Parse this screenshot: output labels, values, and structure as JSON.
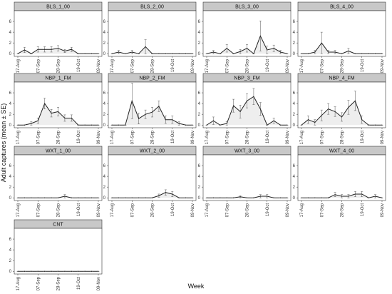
{
  "chart_data": {
    "type": "line",
    "x_label": "Week",
    "y_label": "Adult captures (mean ± SE)",
    "categories": [
      "17-Aug",
      null,
      null,
      "07-Sep",
      null,
      null,
      "28-Sep",
      null,
      null,
      "19-Oct",
      null,
      null,
      "09-Nov"
    ],
    "ylim": [
      -0.5,
      8
    ],
    "yticks": [
      0,
      2,
      4,
      6
    ],
    "color": "#222222",
    "fill": "#eeeeee",
    "panels": [
      {
        "title": "BLS_1_00",
        "values": [
          0,
          0.7,
          0,
          0.8,
          0.8,
          0.8,
          1,
          0.5,
          0.8,
          0,
          0,
          0,
          0
        ],
        "errors": [
          0,
          0.5,
          0,
          0.5,
          0.5,
          0.5,
          0.5,
          0.3,
          0.4,
          0,
          0,
          0,
          0
        ]
      },
      {
        "title": "BLS_2_00",
        "values": [
          0,
          0.3,
          0,
          0.3,
          0,
          1.3,
          0,
          0,
          0,
          0,
          0,
          0,
          0
        ],
        "errors": [
          0,
          0.3,
          0,
          0.3,
          0,
          1.3,
          0,
          0,
          0,
          0,
          0,
          0,
          0
        ]
      },
      {
        "title": "BLS_3_00",
        "values": [
          0,
          0.3,
          0,
          1,
          0,
          0.4,
          1,
          0,
          3.3,
          0.7,
          1,
          0.3,
          0
        ],
        "errors": [
          0,
          0.3,
          0,
          0.7,
          0,
          0.4,
          0.7,
          0,
          2.8,
          0.7,
          0.6,
          0.3,
          0
        ]
      },
      {
        "title": "BLS_4_00",
        "values": [
          0,
          0,
          0.3,
          2,
          0.3,
          0.3,
          0,
          0.5,
          0,
          0,
          0,
          0,
          0
        ],
        "errors": [
          0,
          0,
          0.3,
          2,
          0.3,
          0.3,
          0,
          0.5,
          0,
          0,
          0,
          0,
          0
        ]
      },
      {
        "title": "NBP_1_FM",
        "values": [
          0,
          0,
          0.3,
          0.8,
          4,
          2.2,
          2.5,
          1.3,
          1.3,
          0,
          0,
          0,
          0
        ],
        "errors": [
          0,
          0,
          0.3,
          0.5,
          1,
          0.7,
          0.8,
          0.6,
          0.6,
          0,
          0,
          0,
          0
        ]
      },
      {
        "title": "NBP_2_FM",
        "values": [
          0,
          0,
          0,
          4.5,
          1.2,
          2,
          2.4,
          3.5,
          1,
          1,
          0.3,
          0,
          0
        ],
        "errors": [
          0,
          0,
          0,
          3.3,
          1,
          0.8,
          0.9,
          1,
          0.7,
          0.7,
          0.3,
          0,
          0
        ]
      },
      {
        "title": "NBP_3_FM",
        "values": [
          0,
          0.8,
          0,
          0.3,
          3.6,
          2.5,
          4.5,
          5.3,
          3,
          0,
          0.8,
          0,
          0
        ],
        "errors": [
          0,
          0.7,
          0,
          0.3,
          1.2,
          1.2,
          1.3,
          1.5,
          1.2,
          0,
          0.5,
          0,
          0
        ]
      },
      {
        "title": "NBP_4_FM",
        "values": [
          0,
          1,
          0.5,
          1.8,
          3,
          2.5,
          1.5,
          3.3,
          4.5,
          1,
          0,
          0,
          0
        ],
        "errors": [
          0,
          0.7,
          0.5,
          1,
          1,
          0.9,
          0.8,
          1.3,
          1.8,
          0.7,
          0,
          0,
          0
        ]
      },
      {
        "title": "WXT_1_00",
        "values": [
          0,
          0,
          0,
          0,
          0,
          0,
          0,
          0.3,
          0,
          0,
          0,
          0,
          0
        ],
        "errors": [
          0,
          0,
          0,
          0,
          0,
          0,
          0,
          0.3,
          0,
          0,
          0,
          0,
          0
        ]
      },
      {
        "title": "WXT_2_00",
        "values": [
          0,
          0,
          0,
          0,
          0,
          0,
          0,
          0.4,
          1,
          0.7,
          0,
          0,
          0
        ],
        "errors": [
          0,
          0,
          0,
          0,
          0,
          0,
          0,
          0.3,
          0.5,
          0.5,
          0,
          0,
          0
        ]
      },
      {
        "title": "WXT_3_00",
        "values": [
          0,
          0,
          0,
          0,
          0,
          0.2,
          0,
          0,
          0.3,
          0.3,
          0,
          0,
          0
        ],
        "errors": [
          0,
          0,
          0,
          0,
          0,
          0.2,
          0,
          0,
          0.3,
          0.3,
          0,
          0,
          0
        ]
      },
      {
        "title": "WXT_4_00",
        "values": [
          0,
          0,
          0,
          0,
          0,
          0.6,
          0.3,
          0.3,
          0.7,
          0.7,
          0,
          0.3,
          0
        ],
        "errors": [
          0,
          0,
          0,
          0,
          0,
          0.4,
          0.3,
          0.3,
          0.5,
          0.5,
          0,
          0.3,
          0
        ]
      },
      {
        "title": "CNT",
        "values": [
          0,
          0,
          0,
          0,
          0,
          0,
          0,
          0,
          0,
          0,
          0,
          0,
          0
        ],
        "errors": [
          0,
          0,
          0,
          0,
          0,
          0,
          0,
          0,
          0,
          0,
          0,
          0,
          0
        ]
      }
    ]
  }
}
